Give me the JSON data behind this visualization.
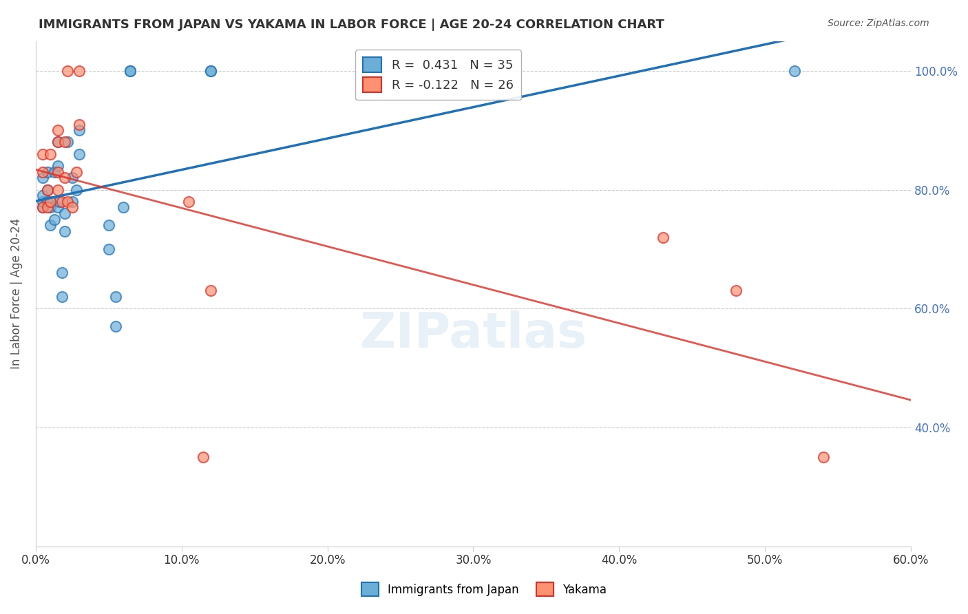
{
  "title": "IMMIGRANTS FROM JAPAN VS YAKAMA IN LABOR FORCE | AGE 20-24 CORRELATION CHART",
  "source": "Source: ZipAtlas.com",
  "ylabel": "In Labor Force | Age 20-24",
  "xlabel_ticks": [
    "0.0%",
    "10.0%",
    "20.0%",
    "30.0%",
    "40.0%",
    "50.0%",
    "60.0%"
  ],
  "xlim": [
    0.0,
    0.6
  ],
  "ylim": [
    0.2,
    1.05
  ],
  "legend_label1": "Immigrants from Japan",
  "legend_label2": "Yakama",
  "R1": 0.431,
  "N1": 35,
  "R2": -0.122,
  "N2": 26,
  "blue_color": "#6baed6",
  "blue_line_color": "#2171b5",
  "pink_color": "#fc9272",
  "pink_line_color": "#de2d26",
  "blue_scatter_x": [
    0.005,
    0.005,
    0.005,
    0.005,
    0.008,
    0.008,
    0.008,
    0.01,
    0.01,
    0.013,
    0.013,
    0.015,
    0.015,
    0.015,
    0.016,
    0.018,
    0.018,
    0.02,
    0.02,
    0.022,
    0.025,
    0.025,
    0.028,
    0.03,
    0.03,
    0.05,
    0.05,
    0.055,
    0.055,
    0.06,
    0.065,
    0.065,
    0.12,
    0.12,
    0.52
  ],
  "blue_scatter_y": [
    0.77,
    0.78,
    0.79,
    0.82,
    0.78,
    0.8,
    0.83,
    0.74,
    0.77,
    0.75,
    0.83,
    0.77,
    0.84,
    0.88,
    0.78,
    0.62,
    0.66,
    0.73,
    0.76,
    0.88,
    0.78,
    0.82,
    0.8,
    0.86,
    0.9,
    0.7,
    0.74,
    0.62,
    0.57,
    0.77,
    1.0,
    1.0,
    1.0,
    1.0,
    1.0
  ],
  "pink_scatter_x": [
    0.005,
    0.005,
    0.005,
    0.008,
    0.008,
    0.01,
    0.01,
    0.015,
    0.015,
    0.015,
    0.015,
    0.018,
    0.02,
    0.02,
    0.022,
    0.022,
    0.025,
    0.028,
    0.03,
    0.03,
    0.105,
    0.115,
    0.12,
    0.43,
    0.48,
    0.54
  ],
  "pink_scatter_y": [
    0.77,
    0.83,
    0.86,
    0.77,
    0.8,
    0.78,
    0.86,
    0.8,
    0.83,
    0.88,
    0.9,
    0.78,
    0.82,
    0.88,
    0.78,
    1.0,
    0.77,
    0.83,
    0.91,
    1.0,
    0.78,
    0.35,
    0.63,
    0.72,
    0.63,
    0.35
  ],
  "watermark": "ZIPatlas",
  "background_color": "#ffffff",
  "grid_color": "#cccccc",
  "title_color": "#333333",
  "right_tick_color": "#4472C4"
}
